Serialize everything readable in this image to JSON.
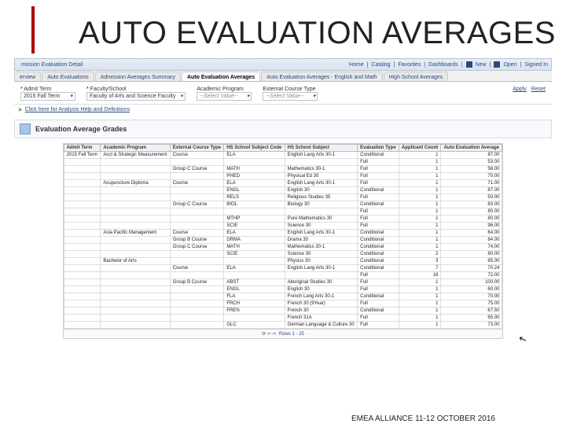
{
  "slide": {
    "title": "AUTO EVALUATION AVERAGES"
  },
  "breadcrumb": {
    "page_title_left": "mission Evaluation Detail",
    "right": [
      "Home",
      "Catalog",
      "Favorites",
      "Dashboards",
      "New",
      "Open",
      "Signed In"
    ]
  },
  "tabs": [
    {
      "label": "erview"
    },
    {
      "label": "Auto Evaluations"
    },
    {
      "label": "Admission Averages Summary"
    },
    {
      "label": "Auto Evaluation Averages",
      "active": true
    },
    {
      "label": "Auto Evaluation Averages - English and Math"
    },
    {
      "label": "High School Averages"
    }
  ],
  "filters": [
    {
      "label": "Admit Term",
      "required": true,
      "value": "2015 Fall Term"
    },
    {
      "label": "Faculty/School",
      "required": true,
      "value": "Faculty of Arts and Science Faculty"
    },
    {
      "label": "Academic Program",
      "required": false,
      "value": "--Select Value--",
      "placeholder": true
    },
    {
      "label": "External Course Type",
      "required": false,
      "value": "--Select Value--",
      "placeholder": true
    }
  ],
  "filter_actions": {
    "apply": "Apply",
    "reset": "Reset"
  },
  "help_link": "Click here for Analysis Help and Definitions",
  "section_title": "Evaluation Average Grades",
  "columns": [
    "Admit Term",
    "Academic Program",
    "External Course Type",
    "HS School Subject Code",
    "HS School Subject",
    "Evaluation Type",
    "Applicant Count",
    "Auto Evaluation Average"
  ],
  "rows": [
    [
      "2015 Fall Term",
      "Acct & Strategic Measurement",
      "Course",
      "ELA",
      "English Lang Arts 30-1",
      "Conditional",
      "1",
      "87.00"
    ],
    [
      "",
      "",
      "",
      "",
      "",
      "Full",
      "1",
      "53.00"
    ],
    [
      "",
      "",
      "Group C Course",
      "MATH",
      "Mathematics 30-1",
      "Full",
      "1",
      "56.00"
    ],
    [
      "",
      "",
      "",
      "PHED",
      "Physical Ed 30",
      "Full",
      "1",
      "70.00"
    ],
    [
      "",
      "Acupuncture Diploma",
      "Course",
      "ELA",
      "English Lang Arts 30-1",
      "Full",
      "1",
      "71.00"
    ],
    [
      "",
      "",
      "",
      "ENGL",
      "English 30",
      "Conditional",
      "1",
      "87.00"
    ],
    [
      "",
      "",
      "",
      "RELS",
      "Religious Studies 35",
      "Full",
      "1",
      "50.00"
    ],
    [
      "",
      "",
      "Group C Course",
      "BIOL",
      "Biology 30",
      "Conditional",
      "1",
      "83.00"
    ],
    [
      "",
      "",
      "",
      "",
      "",
      "Full",
      "1",
      "80.00"
    ],
    [
      "",
      "",
      "",
      "MTHP",
      "Pure Mathematics 30",
      "Full",
      "1",
      "80.00"
    ],
    [
      "",
      "",
      "",
      "SCIE",
      "Science 30",
      "Full",
      "1",
      "96.00"
    ],
    [
      "",
      "Asia Pacific Management",
      "Course",
      "ELA",
      "English Lang Arts 30-1",
      "Conditional",
      "1",
      "64.00"
    ],
    [
      "",
      "",
      "Group B Course",
      "DRMA",
      "Drama 30",
      "Conditional",
      "1",
      "84.00"
    ],
    [
      "",
      "",
      "Group C Course",
      "MATH",
      "Mathematics 30-1",
      "Conditional",
      "1",
      "74.00"
    ],
    [
      "",
      "",
      "",
      "SCIE",
      "Science 30",
      "Conditional",
      "2",
      "80.00"
    ],
    [
      "",
      "Bachelor of Arts",
      "",
      "",
      "Physics 30",
      "Conditional",
      "3",
      "65.00"
    ],
    [
      "",
      "",
      "Course",
      "ELA",
      "English Lang Arts 30-1",
      "Conditional",
      "7",
      "70.24"
    ],
    [
      "",
      "",
      "",
      "",
      "",
      "Full",
      "16",
      "72.00"
    ],
    [
      "",
      "",
      "Group B Course",
      "ABST",
      "Aboriginal Studies 30",
      "Full",
      "1",
      "100.00"
    ],
    [
      "",
      "",
      "",
      "ENGL",
      "English 30",
      "Full",
      "1",
      "60.00"
    ],
    [
      "",
      "",
      "",
      "FLA",
      "French Lang Arts 30-1",
      "Conditional",
      "1",
      "70.00"
    ],
    [
      "",
      "",
      "",
      "FRCH",
      "French 30 (9Year)",
      "Full",
      "1",
      "75.00"
    ],
    [
      "",
      "",
      "",
      "FREN",
      "French 30",
      "Conditional",
      "1",
      "67.50"
    ],
    [
      "",
      "",
      "",
      "",
      "French 31A",
      "Full",
      "1",
      "65.00"
    ],
    [
      "",
      "",
      "",
      "GLC",
      "German Language & Culture 30",
      "Full",
      "1",
      "73.00"
    ]
  ],
  "pager": {
    "refresh": "⟳",
    "prev": "⇦",
    "next": "⇨",
    "label": "Rows 1 - 25"
  },
  "footer": "EMEA ALLIANCE   11-12 OCTOBER 2016"
}
